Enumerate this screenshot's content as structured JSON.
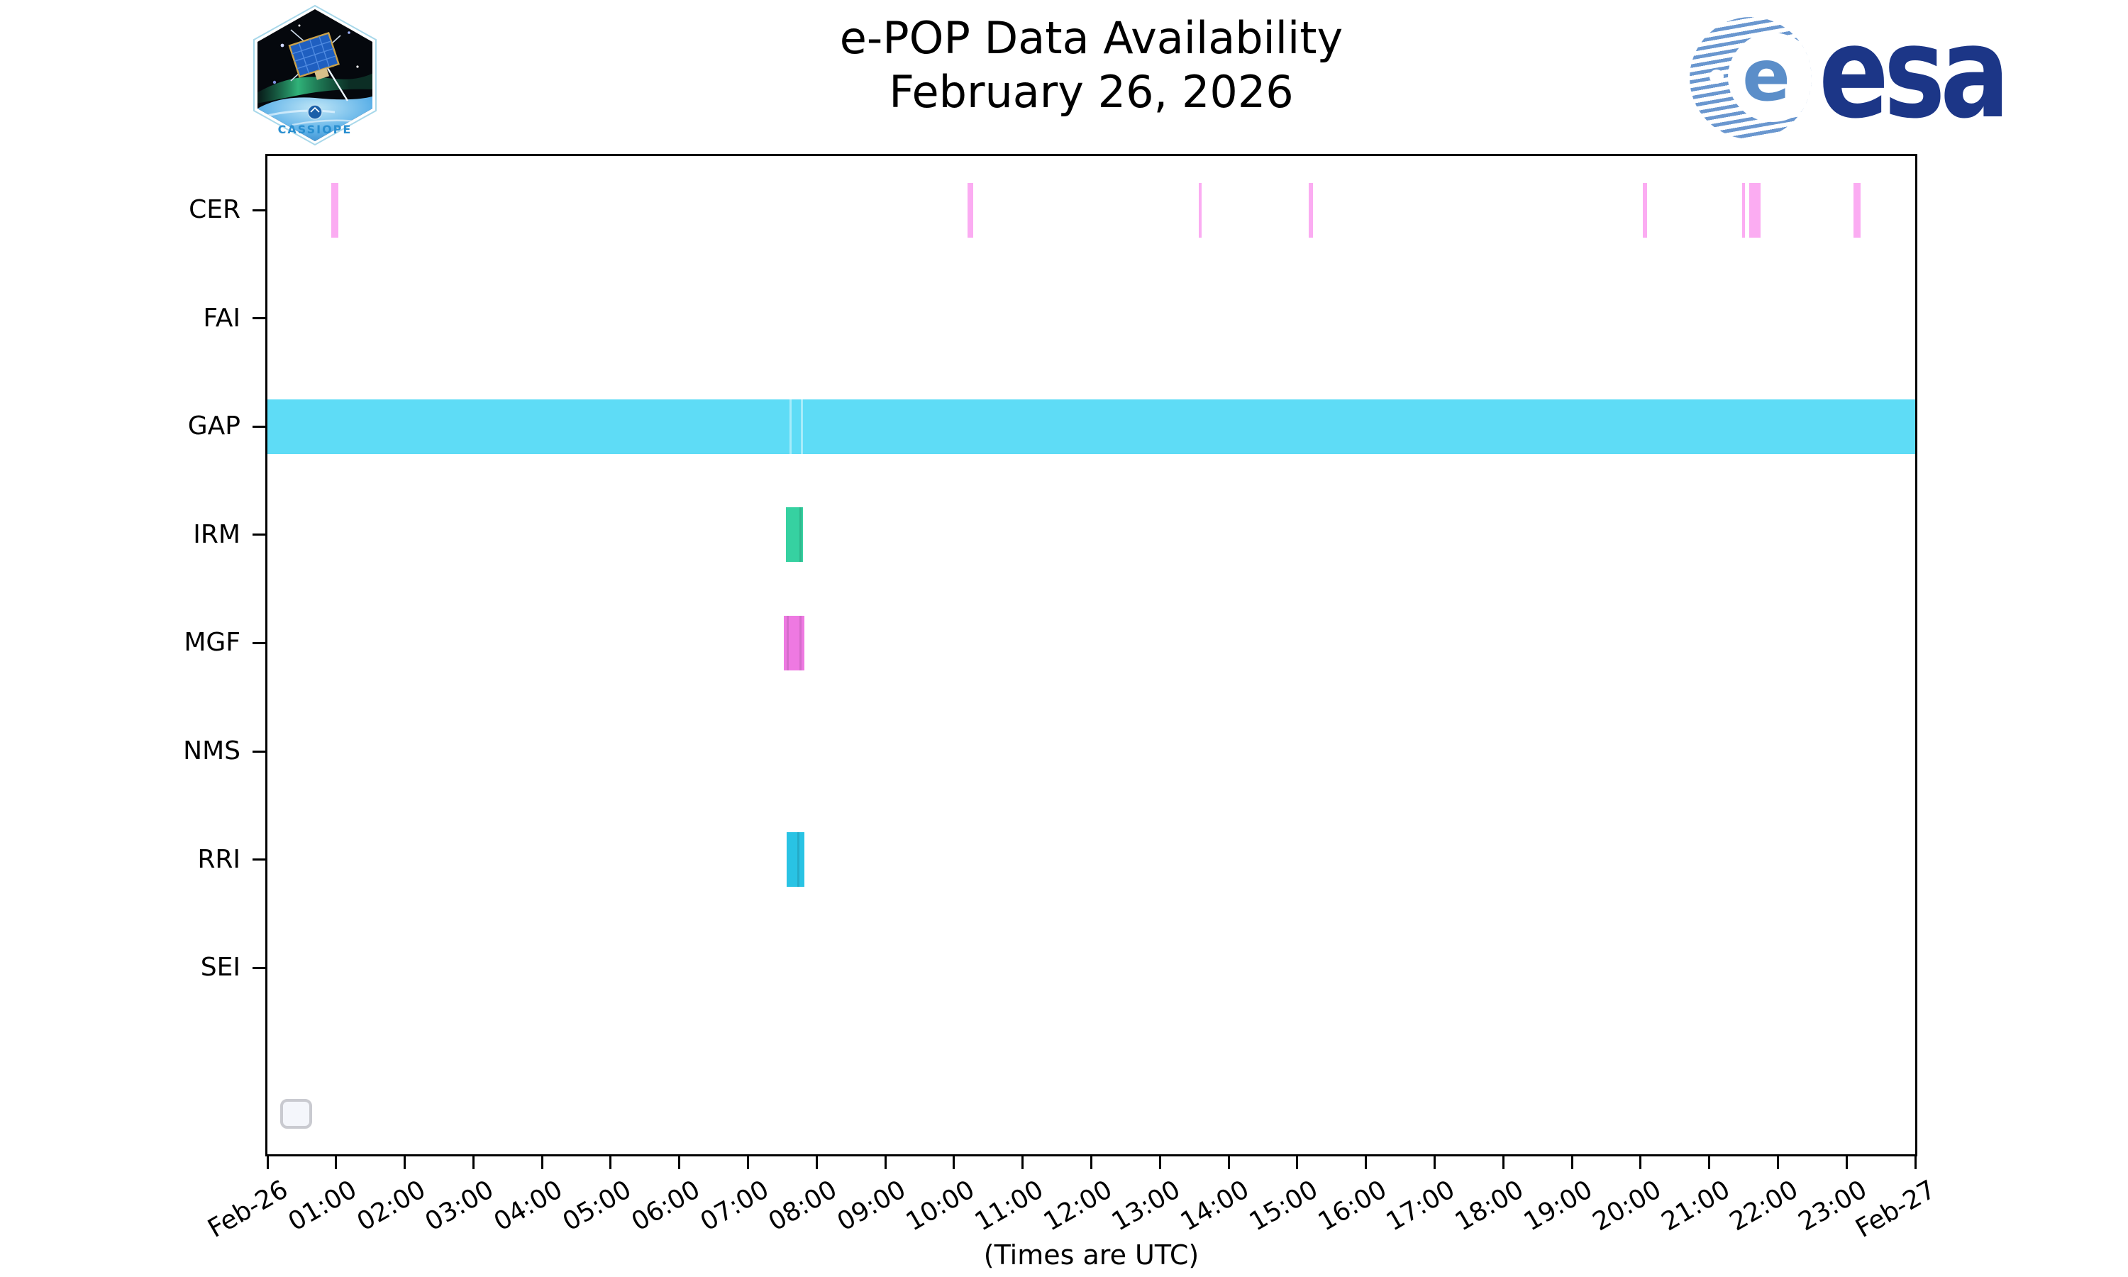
{
  "logos": {
    "cassiope_text": "CASSIOPE",
    "esa_text": "esa"
  },
  "colors": {
    "cer_bar": "#fbacf2",
    "gap_band": "#5edcf6",
    "irm_bar": "#36d1a1",
    "mgf_bar": "#ee79e2",
    "rri_bar": "#29c3e4",
    "esa_navy": "#1c3687",
    "esa_globe_blue": "#6a97cf",
    "axis_color": "#000000",
    "legend_border": "#c9cad0"
  },
  "chart_data": {
    "type": "gantt",
    "title": "e-POP Data Availability",
    "subtitle": "February 26, 2026",
    "xlabel": "(Times are UTC)",
    "grid": false,
    "legend": {
      "position": "lower left",
      "entries": []
    },
    "x_axis": {
      "start": "Feb-26 00:00",
      "end": "Feb-27 00:00",
      "tick_interval_hours": 1,
      "tick_labels": [
        "Feb-26",
        "01:00",
        "02:00",
        "03:00",
        "04:00",
        "05:00",
        "06:00",
        "07:00",
        "08:00",
        "09:00",
        "10:00",
        "11:00",
        "12:00",
        "13:00",
        "14:00",
        "15:00",
        "16:00",
        "17:00",
        "18:00",
        "19:00",
        "20:00",
        "21:00",
        "22:00",
        "23:00",
        "Feb-27"
      ]
    },
    "y_categories": [
      "CER",
      "FAI",
      "GAP",
      "IRM",
      "MGF",
      "NMS",
      "RRI",
      "SEI"
    ],
    "bars": [
      {
        "row": "CER",
        "start": "00:56",
        "end": "01:02",
        "color": "#fbacf2"
      },
      {
        "row": "CER",
        "start": "10:12",
        "end": "10:17",
        "color": "#fbacf2"
      },
      {
        "row": "CER",
        "start": "13:34",
        "end": "13:36",
        "color": "#fbacf2"
      },
      {
        "row": "CER",
        "start": "15:10",
        "end": "15:14",
        "color": "#fbacf2"
      },
      {
        "row": "CER",
        "start": "20:02",
        "end": "20:06",
        "color": "#fbacf2"
      },
      {
        "row": "CER",
        "start": "21:29",
        "end": "21:31",
        "color": "#fbacf2"
      },
      {
        "row": "CER",
        "start": "21:35",
        "end": "21:45",
        "color": "#fbacf2"
      },
      {
        "row": "CER",
        "start": "23:06",
        "end": "23:12",
        "color": "#fbacf2"
      },
      {
        "row": "GAP",
        "start": "00:00",
        "end": "24:00",
        "color": "#5edcf6",
        "seams": [
          "07:36",
          "07:46"
        ],
        "seam_color": "rgba(255,255,255,0.45)"
      },
      {
        "row": "IRM",
        "start": "07:33",
        "end": "07:48",
        "color": "#36d1a1",
        "seams": [
          "07:45"
        ],
        "seam_color": "rgba(0,0,0,0.12)"
      },
      {
        "row": "MGF",
        "start": "07:31",
        "end": "07:49",
        "color": "#ee79e2",
        "seams": [
          "07:34",
          "07:45"
        ],
        "seam_color": "rgba(0,0,0,0.10)"
      },
      {
        "row": "RRI",
        "start": "07:34",
        "end": "07:49",
        "color": "#29c3e4",
        "seams": [
          "07:43"
        ],
        "seam_color": "rgba(0,0,0,0.12)"
      }
    ]
  }
}
